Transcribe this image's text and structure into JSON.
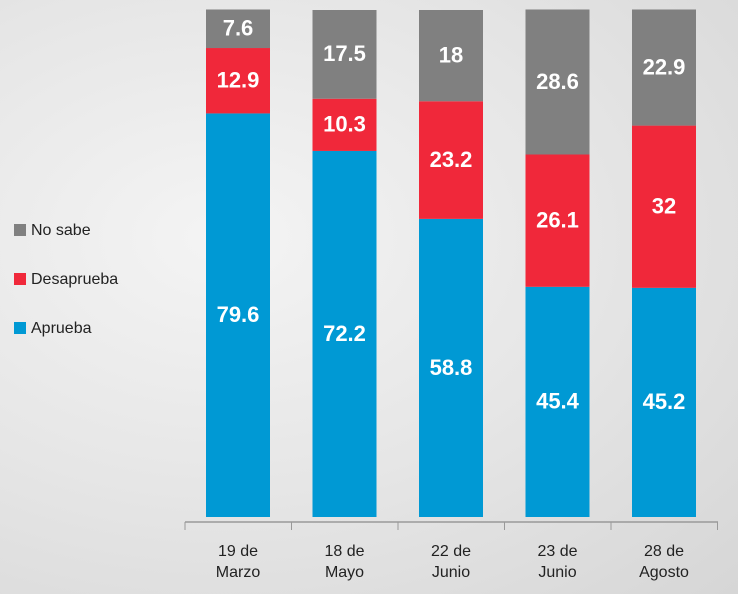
{
  "chart_data": {
    "type": "stacked_bar",
    "categories": [
      "19 de Marzo",
      "18 de Mayo",
      "22 de Junio",
      "23 de Junio",
      "28 de Agosto"
    ],
    "series": [
      {
        "name": "Aprueba",
        "color": "#0099d4",
        "values": [
          79.6,
          72.2,
          58.8,
          45.4,
          45.2
        ]
      },
      {
        "name": "Desaprueba",
        "color": "#f0283a",
        "values": [
          12.9,
          10.3,
          23.2,
          26.1,
          32
        ]
      },
      {
        "name": "No sabe",
        "color": "#808080",
        "values": [
          7.6,
          17.5,
          18,
          28.6,
          22.9
        ]
      }
    ],
    "ylim": [
      0,
      100
    ]
  }
}
